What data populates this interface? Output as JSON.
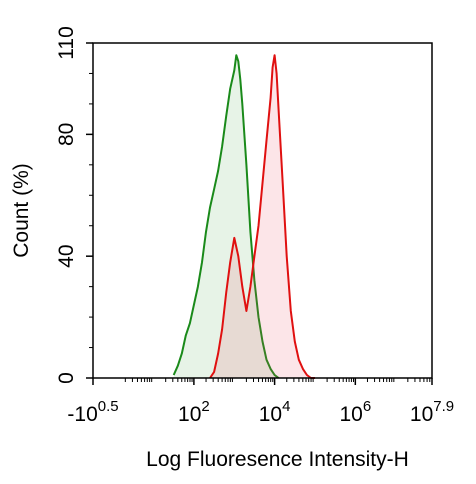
{
  "chart_data": {
    "type": "area",
    "title": "",
    "xlabel": "Log Fluoresence Intensity-H",
    "ylabel": "Count  (%)",
    "x_scale": "log10",
    "xlim": [
      -0.5,
      7.9
    ],
    "ylim": [
      0,
      110
    ],
    "grid": false,
    "legend": "none",
    "x_ticks": [
      {
        "value": -0.5,
        "base": "-10",
        "exp": "0.5"
      },
      {
        "value": 2,
        "base": "10",
        "exp": "2"
      },
      {
        "value": 4,
        "base": "10",
        "exp": "4"
      },
      {
        "value": 6,
        "base": "10",
        "exp": "6"
      },
      {
        "value": 7.9,
        "base": "10",
        "exp": "7.9"
      }
    ],
    "y_ticks": [
      0,
      40,
      80,
      110
    ],
    "series": [
      {
        "color": "#1a8a1a",
        "fill": "rgba(60,160,60,0.12)",
        "x": [
          1.5,
          1.6,
          1.7,
          1.8,
          1.9,
          2.0,
          2.1,
          2.2,
          2.3,
          2.4,
          2.5,
          2.6,
          2.7,
          2.8,
          2.9,
          3.0,
          3.05,
          3.1,
          3.15,
          3.2,
          3.3,
          3.4,
          3.5,
          3.6,
          3.7,
          3.8,
          3.9,
          4.0,
          4.1
        ],
        "y": [
          1,
          4,
          8,
          14,
          18,
          24,
          30,
          38,
          48,
          56,
          62,
          68,
          76,
          86,
          95,
          101,
          106,
          104,
          98,
          90,
          70,
          48,
          32,
          20,
          12,
          6,
          3,
          1,
          0
        ]
      },
      {
        "color": "#e01010",
        "fill": "rgba(235,70,90,0.14)",
        "x": [
          2.4,
          2.5,
          2.6,
          2.7,
          2.8,
          2.9,
          3.0,
          3.1,
          3.2,
          3.3,
          3.4,
          3.5,
          3.6,
          3.7,
          3.8,
          3.9,
          3.95,
          4.0,
          4.05,
          4.1,
          4.2,
          4.3,
          4.4,
          4.5,
          4.6,
          4.7,
          4.8,
          4.9,
          5.0
        ],
        "y": [
          0,
          2,
          8,
          16,
          28,
          38,
          46,
          40,
          30,
          22,
          30,
          40,
          50,
          64,
          78,
          92,
          102,
          106,
          100,
          88,
          64,
          40,
          22,
          12,
          6,
          3,
          1,
          0,
          0
        ]
      }
    ]
  }
}
